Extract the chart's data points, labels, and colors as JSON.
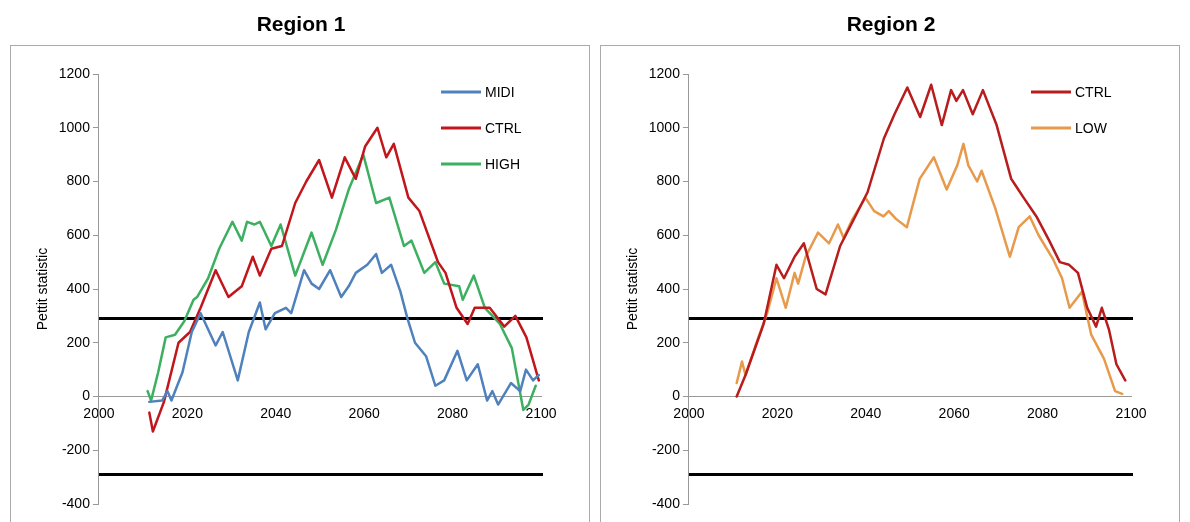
{
  "chart_data": [
    {
      "type": "line",
      "title": "Region 1",
      "ylabel": "Pettit statistic",
      "xlim": [
        2000,
        2100
      ],
      "xticks": [
        2000,
        2020,
        2040,
        2060,
        2080,
        2100
      ],
      "ylim": [
        -400,
        1200
      ],
      "yticks": [
        -400,
        -200,
        0,
        200,
        400,
        600,
        800,
        1000,
        1200
      ],
      "grid": false,
      "legend": "top right",
      "marker": "none",
      "line_style": "solid",
      "ref_lines": [
        {
          "axis": "y",
          "value": 290,
          "color": "#000000"
        },
        {
          "axis": "y",
          "value": -290,
          "color": "#000000"
        }
      ],
      "series": [
        {
          "name": "MIDI",
          "color": "#4f81bd",
          "x": [
            2011.4,
            2014.3,
            2015.5,
            2016.4,
            2018.9,
            2021,
            2023,
            2026.4,
            2028,
            2031.4,
            2033.9,
            2036.4,
            2037.7,
            2039.8,
            2042.3,
            2043.5,
            2046.4,
            2048.1,
            2049.8,
            2052.3,
            2054.8,
            2056.5,
            2058.1,
            2060.7,
            2062.7,
            2064,
            2066.1,
            2068.2,
            2069.8,
            2071.5,
            2074,
            2076.1,
            2078.1,
            2081.1,
            2083.2,
            2085.7,
            2087.8,
            2089,
            2090.3,
            2093.2,
            2095.3,
            2096.6,
            2098.2,
            2099.5
          ],
          "values": [
            -20,
            -15,
            20,
            -15,
            90,
            240,
            310,
            190,
            240,
            60,
            240,
            350,
            250,
            310,
            330,
            310,
            470,
            420,
            400,
            470,
            370,
            410,
            460,
            490,
            530,
            460,
            490,
            390,
            290,
            200,
            150,
            40,
            60,
            170,
            60,
            120,
            -15,
            20,
            -30,
            50,
            20,
            100,
            60,
            80
          ]
        },
        {
          "name": "CTRL",
          "color": "#c0161c",
          "x": [
            2011.4,
            2012.2,
            2014.7,
            2018,
            2020.6,
            2023,
            2026.4,
            2029.3,
            2032.3,
            2034.8,
            2036.4,
            2039,
            2041.4,
            2044.4,
            2046.9,
            2049.8,
            2052.7,
            2055.6,
            2058.1,
            2060.2,
            2063,
            2065,
            2066.7,
            2070,
            2072.5,
            2076.7,
            2078.4,
            2080.9,
            2083.4,
            2085,
            2088.4,
            2091.7,
            2094.2,
            2096.7,
            2099.5
          ],
          "values": [
            -60,
            -130,
            -20,
            200,
            240,
            330,
            470,
            370,
            410,
            520,
            450,
            550,
            560,
            720,
            800,
            880,
            740,
            890,
            810,
            930,
            1000,
            890,
            940,
            740,
            690,
            500,
            460,
            330,
            270,
            330,
            330,
            260,
            300,
            220,
            60
          ]
        },
        {
          "name": "HIGH",
          "color": "#3cb060",
          "x": [
            2011,
            2011.8,
            2013.4,
            2015.1,
            2017.2,
            2019.3,
            2021.4,
            2022.2,
            2024.7,
            2027.2,
            2030.2,
            2032.3,
            2033.5,
            2035.2,
            2036.4,
            2039,
            2041.1,
            2044.4,
            2048.1,
            2050.6,
            2053.6,
            2056.5,
            2059.8,
            2062.7,
            2065.7,
            2069,
            2070.7,
            2073.6,
            2076.1,
            2078.1,
            2081.5,
            2082.3,
            2084.8,
            2087.3,
            2090.7,
            2093.4,
            2096,
            2097.2,
            2098.8
          ],
          "values": [
            20,
            -15,
            90,
            220,
            230,
            280,
            360,
            370,
            440,
            550,
            650,
            580,
            650,
            640,
            650,
            560,
            640,
            450,
            610,
            490,
            620,
            770,
            900,
            720,
            740,
            560,
            580,
            460,
            500,
            420,
            410,
            360,
            450,
            330,
            270,
            180,
            -50,
            -30,
            40
          ]
        }
      ]
    },
    {
      "type": "line",
      "title": "Region 2",
      "ylabel": "Pettit statistic",
      "xlim": [
        2000,
        2100
      ],
      "xticks": [
        2000,
        2020,
        2040,
        2060,
        2080,
        2100
      ],
      "ylim": [
        -400,
        1200
      ],
      "yticks": [
        -400,
        -200,
        0,
        200,
        400,
        600,
        800,
        1000,
        1200
      ],
      "grid": false,
      "legend": "top right",
      "marker": "none",
      "line_style": "solid",
      "ref_lines": [
        {
          "axis": "y",
          "value": 290,
          "color": "#000000"
        },
        {
          "axis": "y",
          "value": -290,
          "color": "#000000"
        }
      ],
      "series": [
        {
          "name": "CTRL",
          "color": "#b81c1c",
          "x": [
            2010.8,
            2012.8,
            2016.9,
            2019.8,
            2021.5,
            2023.9,
            2026,
            2028.9,
            2030.9,
            2034.2,
            2036.7,
            2040.4,
            2044.1,
            2046.5,
            2049.4,
            2052.3,
            2054.8,
            2057.2,
            2059.3,
            2060.5,
            2062,
            2064.2,
            2066.5,
            2069.6,
            2072.9,
            2075.7,
            2078.6,
            2081.5,
            2083.9,
            2086,
            2088,
            2090.1,
            2092.1,
            2093.4,
            2095,
            2096.7,
            2098.7
          ],
          "values": [
            0,
            80,
            270,
            490,
            440,
            520,
            570,
            400,
            380,
            560,
            640,
            760,
            960,
            1050,
            1150,
            1040,
            1160,
            1010,
            1140,
            1100,
            1140,
            1050,
            1140,
            1010,
            810,
            740,
            670,
            580,
            500,
            490,
            460,
            330,
            260,
            330,
            250,
            120,
            60
          ]
        },
        {
          "name": "LOW",
          "color": "#e89a4c",
          "x": [
            2010.8,
            2012,
            2012.8,
            2015.7,
            2017.7,
            2019.8,
            2021.9,
            2023.9,
            2024.7,
            2026.4,
            2029.2,
            2031.7,
            2033.7,
            2035,
            2037,
            2039.9,
            2041.9,
            2044,
            2045.2,
            2046.9,
            2049.3,
            2052.2,
            2055.4,
            2058.3,
            2060.7,
            2062.1,
            2063.2,
            2065.2,
            2066.2,
            2069.3,
            2072.6,
            2074.6,
            2077.1,
            2079.1,
            2082.4,
            2084.4,
            2086.1,
            2088.9,
            2091,
            2093.9,
            2096.4,
            2098
          ],
          "values": [
            50,
            130,
            80,
            220,
            310,
            440,
            330,
            460,
            420,
            520,
            610,
            570,
            640,
            590,
            660,
            740,
            690,
            670,
            690,
            660,
            630,
            810,
            890,
            770,
            860,
            940,
            860,
            800,
            840,
            700,
            520,
            630,
            670,
            600,
            510,
            440,
            330,
            390,
            230,
            140,
            20,
            10
          ]
        }
      ]
    }
  ]
}
